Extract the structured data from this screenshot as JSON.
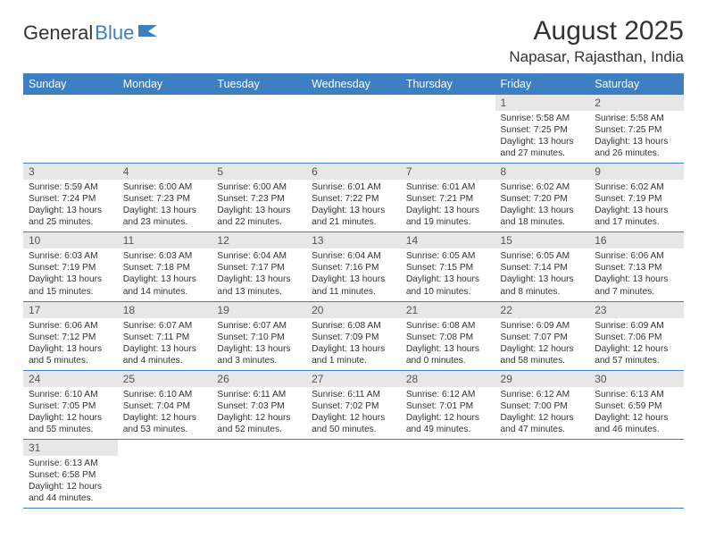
{
  "colors": {
    "brand_blue": "#3d7fc1",
    "header_bg": "#3d7fc1",
    "header_text": "#ffffff",
    "daynum_bg": "#e7e7e7",
    "daynum_text": "#555555",
    "body_text": "#333333",
    "cell_border": "#3d7fc1",
    "page_bg": "#ffffff"
  },
  "fonts": {
    "title_size": 30,
    "subtitle_size": 17,
    "weekday_size": 12.5,
    "daynum_size": 12,
    "daytext_size": 10.2
  },
  "logo": {
    "text1": "General",
    "text2": "Blue"
  },
  "title": "August 2025",
  "subtitle": "Napasar, Rajasthan, India",
  "weekdays": [
    "Sunday",
    "Monday",
    "Tuesday",
    "Wednesday",
    "Thursday",
    "Friday",
    "Saturday"
  ],
  "first_weekday_index": 5,
  "days": [
    {
      "n": "1",
      "sr": "5:58 AM",
      "ss": "7:25 PM",
      "dl": "13 hours and 27 minutes."
    },
    {
      "n": "2",
      "sr": "5:58 AM",
      "ss": "7:25 PM",
      "dl": "13 hours and 26 minutes."
    },
    {
      "n": "3",
      "sr": "5:59 AM",
      "ss": "7:24 PM",
      "dl": "13 hours and 25 minutes."
    },
    {
      "n": "4",
      "sr": "6:00 AM",
      "ss": "7:23 PM",
      "dl": "13 hours and 23 minutes."
    },
    {
      "n": "5",
      "sr": "6:00 AM",
      "ss": "7:23 PM",
      "dl": "13 hours and 22 minutes."
    },
    {
      "n": "6",
      "sr": "6:01 AM",
      "ss": "7:22 PM",
      "dl": "13 hours and 21 minutes."
    },
    {
      "n": "7",
      "sr": "6:01 AM",
      "ss": "7:21 PM",
      "dl": "13 hours and 19 minutes."
    },
    {
      "n": "8",
      "sr": "6:02 AM",
      "ss": "7:20 PM",
      "dl": "13 hours and 18 minutes."
    },
    {
      "n": "9",
      "sr": "6:02 AM",
      "ss": "7:19 PM",
      "dl": "13 hours and 17 minutes."
    },
    {
      "n": "10",
      "sr": "6:03 AM",
      "ss": "7:19 PM",
      "dl": "13 hours and 15 minutes."
    },
    {
      "n": "11",
      "sr": "6:03 AM",
      "ss": "7:18 PM",
      "dl": "13 hours and 14 minutes."
    },
    {
      "n": "12",
      "sr": "6:04 AM",
      "ss": "7:17 PM",
      "dl": "13 hours and 13 minutes."
    },
    {
      "n": "13",
      "sr": "6:04 AM",
      "ss": "7:16 PM",
      "dl": "13 hours and 11 minutes."
    },
    {
      "n": "14",
      "sr": "6:05 AM",
      "ss": "7:15 PM",
      "dl": "13 hours and 10 minutes."
    },
    {
      "n": "15",
      "sr": "6:05 AM",
      "ss": "7:14 PM",
      "dl": "13 hours and 8 minutes."
    },
    {
      "n": "16",
      "sr": "6:06 AM",
      "ss": "7:13 PM",
      "dl": "13 hours and 7 minutes."
    },
    {
      "n": "17",
      "sr": "6:06 AM",
      "ss": "7:12 PM",
      "dl": "13 hours and 5 minutes."
    },
    {
      "n": "18",
      "sr": "6:07 AM",
      "ss": "7:11 PM",
      "dl": "13 hours and 4 minutes."
    },
    {
      "n": "19",
      "sr": "6:07 AM",
      "ss": "7:10 PM",
      "dl": "13 hours and 3 minutes."
    },
    {
      "n": "20",
      "sr": "6:08 AM",
      "ss": "7:09 PM",
      "dl": "13 hours and 1 minute."
    },
    {
      "n": "21",
      "sr": "6:08 AM",
      "ss": "7:08 PM",
      "dl": "13 hours and 0 minutes."
    },
    {
      "n": "22",
      "sr": "6:09 AM",
      "ss": "7:07 PM",
      "dl": "12 hours and 58 minutes."
    },
    {
      "n": "23",
      "sr": "6:09 AM",
      "ss": "7:06 PM",
      "dl": "12 hours and 57 minutes."
    },
    {
      "n": "24",
      "sr": "6:10 AM",
      "ss": "7:05 PM",
      "dl": "12 hours and 55 minutes."
    },
    {
      "n": "25",
      "sr": "6:10 AM",
      "ss": "7:04 PM",
      "dl": "12 hours and 53 minutes."
    },
    {
      "n": "26",
      "sr": "6:11 AM",
      "ss": "7:03 PM",
      "dl": "12 hours and 52 minutes."
    },
    {
      "n": "27",
      "sr": "6:11 AM",
      "ss": "7:02 PM",
      "dl": "12 hours and 50 minutes."
    },
    {
      "n": "28",
      "sr": "6:12 AM",
      "ss": "7:01 PM",
      "dl": "12 hours and 49 minutes."
    },
    {
      "n": "29",
      "sr": "6:12 AM",
      "ss": "7:00 PM",
      "dl": "12 hours and 47 minutes."
    },
    {
      "n": "30",
      "sr": "6:13 AM",
      "ss": "6:59 PM",
      "dl": "12 hours and 46 minutes."
    },
    {
      "n": "31",
      "sr": "6:13 AM",
      "ss": "6:58 PM",
      "dl": "12 hours and 44 minutes."
    }
  ],
  "labels": {
    "sunrise": "Sunrise: ",
    "sunset": "Sunset: ",
    "daylight": "Daylight: "
  }
}
